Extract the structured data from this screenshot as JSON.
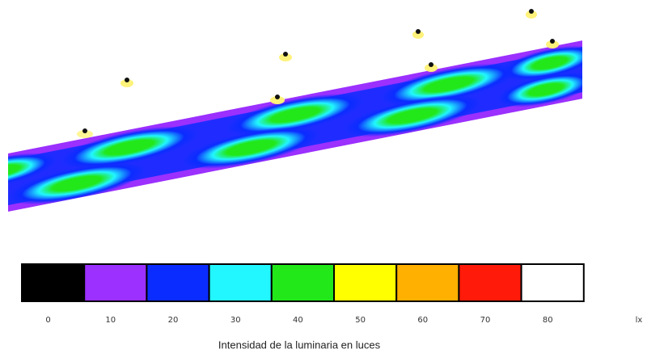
{
  "legend": {
    "levels": [
      {
        "value": 0,
        "color": "#000000"
      },
      {
        "value": 10,
        "color": "#9b30ff"
      },
      {
        "value": 20,
        "color": "#0b2cff"
      },
      {
        "value": 30,
        "color": "#22f6ff"
      },
      {
        "value": 40,
        "color": "#22e81a"
      },
      {
        "value": 50,
        "color": "#ffff00"
      },
      {
        "value": 60,
        "color": "#ffb000"
      },
      {
        "value": 70,
        "color": "#ff1a0a"
      },
      {
        "value": 80,
        "color": "#ffffff"
      }
    ],
    "unit": "lx"
  },
  "caption": "Intensidad de la luminaria en luces"
}
